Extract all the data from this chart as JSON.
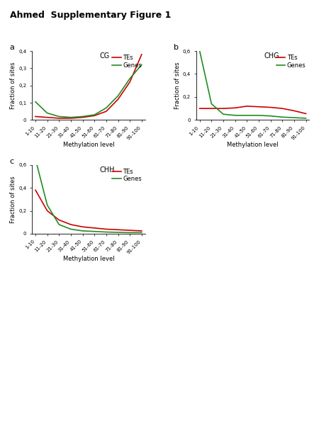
{
  "title": "Ahmed  Supplementary Figure 1",
  "x_labels": [
    "1-10",
    "11-20",
    "21-30",
    "31-40",
    "41-50",
    "51-60",
    "61-70",
    "71-80",
    "81-90",
    "91-100"
  ],
  "xlabel": "Methylation level",
  "ylabel": "Fraction of sites",
  "panels": [
    {
      "label": "a",
      "title": "CG",
      "ylim": [
        0,
        0.4
      ],
      "yticks": [
        0,
        0.1,
        0.2,
        0.3,
        0.4
      ],
      "TEs": [
        0.02,
        0.015,
        0.01,
        0.01,
        0.015,
        0.025,
        0.05,
        0.12,
        0.22,
        0.38
      ],
      "Genes": [
        0.105,
        0.04,
        0.02,
        0.015,
        0.02,
        0.03,
        0.07,
        0.14,
        0.24,
        0.32
      ]
    },
    {
      "label": "b",
      "title": "CHG",
      "ylim": [
        0,
        0.6
      ],
      "yticks": [
        0,
        0.2,
        0.4,
        0.6
      ],
      "TEs": [
        0.1,
        0.1,
        0.1,
        0.105,
        0.12,
        0.115,
        0.11,
        0.1,
        0.08,
        0.055
      ],
      "Genes": [
        0.6,
        0.14,
        0.05,
        0.04,
        0.04,
        0.04,
        0.035,
        0.025,
        0.02,
        0.015
      ]
    },
    {
      "label": "c",
      "title": "CHH",
      "ylim": [
        0,
        0.6
      ],
      "yticks": [
        0,
        0.2,
        0.4,
        0.6
      ],
      "TEs": [
        0.38,
        0.2,
        0.12,
        0.08,
        0.06,
        0.05,
        0.04,
        0.035,
        0.03,
        0.025
      ],
      "Genes": [
        0.65,
        0.25,
        0.08,
        0.04,
        0.025,
        0.02,
        0.015,
        0.012,
        0.01,
        0.01
      ]
    }
  ],
  "color_TEs": "#cc0000",
  "color_Genes": "#228B22",
  "linewidth": 1.2,
  "bg_color": "#ffffff",
  "title_fontsize": 9,
  "panel_label_fontsize": 8,
  "panel_title_fontsize": 7,
  "axis_label_fontsize": 6,
  "tick_fontsize": 5,
  "legend_fontsize": 6
}
